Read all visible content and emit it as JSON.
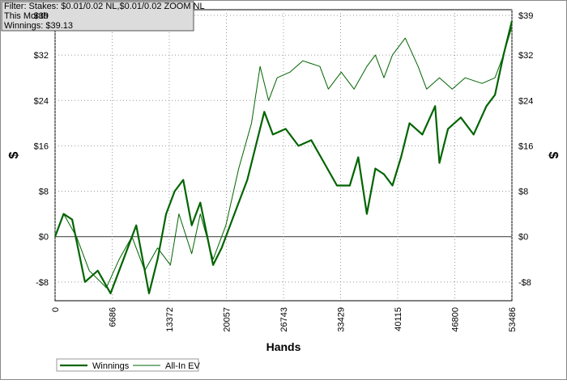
{
  "chart_data": {
    "type": "line",
    "filter_lines": [
      "Filter: Stakes: $0.01/0.02 NL,$0.01/0.02 ZOOM NL",
      "This Month",
      "Winnings: $39.13"
    ],
    "xlabel": "Hands",
    "ylabel": "$",
    "y2label": "$",
    "xlim": [
      0,
      53486
    ],
    "xticks": [
      0,
      6686,
      13372,
      20057,
      26743,
      33429,
      40115,
      46800,
      53486
    ],
    "ylim": [
      -11.3,
      40
    ],
    "yticks": [
      {
        "value": -8,
        "label": "-$8"
      },
      {
        "value": 0,
        "label": "$0"
      },
      {
        "value": 8,
        "label": "$8"
      },
      {
        "value": 16,
        "label": "$16"
      },
      {
        "value": 24,
        "label": "$24"
      },
      {
        "value": 32,
        "label": "$32"
      },
      {
        "value": 39,
        "label": "$39"
      }
    ],
    "grid": true,
    "legend": "bottom-left",
    "series": [
      {
        "name": "Winnings",
        "color": "#006400",
        "width": 2.2,
        "x": [
          0,
          1000,
          2000,
          3500,
          5000,
          6500,
          8000,
          9500,
          11000,
          12000,
          13000,
          14000,
          15000,
          16000,
          17000,
          18500,
          19500,
          21000,
          22500,
          23500,
          24500,
          25500,
          27000,
          28500,
          30000,
          31500,
          33000,
          34500,
          35500,
          36500,
          37500,
          38500,
          39500,
          40500,
          41500,
          43000,
          44500,
          45000,
          46000,
          47500,
          49000,
          50500,
          51500,
          52500,
          53486
        ],
        "values": [
          0,
          4,
          3,
          -8,
          -6,
          -10,
          -4,
          2,
          -10,
          -4,
          4,
          8,
          10,
          2,
          6,
          -5,
          -2,
          4,
          10,
          16,
          22,
          18,
          19,
          16,
          17,
          13,
          9,
          9,
          14,
          4,
          12,
          11,
          9,
          14,
          20,
          18,
          23,
          13,
          19,
          21,
          18,
          23,
          25,
          32,
          38
        ]
      },
      {
        "name": "All-In EV",
        "color": "#006400",
        "width": 1,
        "x": [
          0,
          1000,
          2500,
          4000,
          6000,
          7500,
          9000,
          10500,
          12000,
          13500,
          14500,
          16000,
          17000,
          18500,
          20000,
          21500,
          23000,
          24000,
          25000,
          26000,
          27500,
          29000,
          31000,
          32000,
          33500,
          35000,
          36500,
          37500,
          38500,
          39500,
          41000,
          42500,
          43500,
          45000,
          46500,
          48000,
          50000,
          51500,
          52500,
          53486
        ],
        "values": [
          0,
          4,
          0,
          -6,
          -9,
          -4,
          0,
          -6,
          -2,
          -5,
          4,
          -3,
          4,
          -4,
          2,
          12,
          20,
          30,
          24,
          28,
          29,
          31,
          30,
          26,
          29,
          26,
          30,
          32,
          28,
          32,
          35,
          30,
          26,
          28,
          26,
          28,
          27,
          28,
          32,
          37
        ]
      }
    ]
  }
}
